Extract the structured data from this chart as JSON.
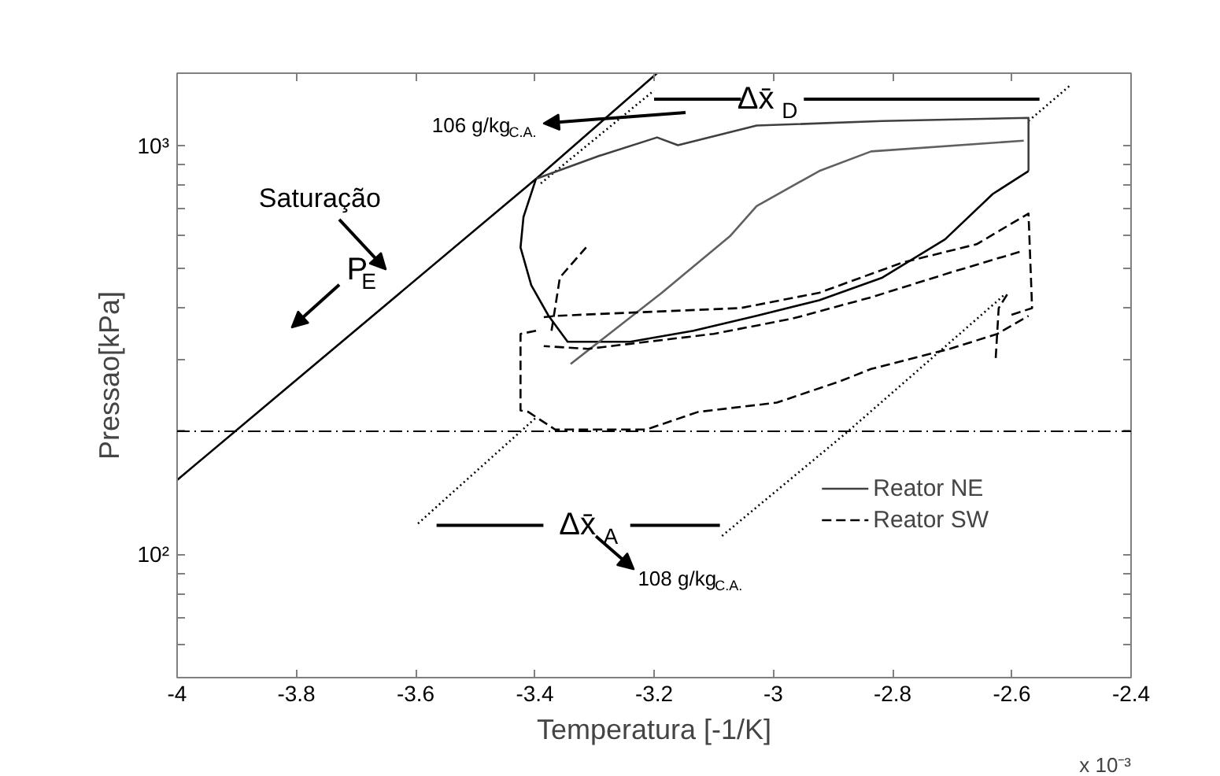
{
  "chart_data": {
    "type": "line",
    "xlabel": "Temperatura [-1/K]",
    "ylabel": "Pressao[kPa]",
    "xlim": [
      -4,
      -2.4
    ],
    "ylim": [
      50,
      1500
    ],
    "log": "y",
    "grid": false,
    "legend": "bottom right",
    "marker": "none",
    "xticks": [
      -4,
      -3.8,
      -3.6,
      -3.4,
      -3.2,
      -3,
      -2.8,
      -2.6,
      -2.4
    ],
    "yticks": [
      {
        "value": 60,
        "label": null
      },
      {
        "value": 70,
        "label": null
      },
      {
        "value": 80,
        "label": null
      },
      {
        "value": 90,
        "label": null
      },
      {
        "value": 100,
        "label": "10²"
      },
      {
        "value": 200,
        "label": null
      },
      {
        "value": 300,
        "label": null
      },
      {
        "value": 400,
        "label": null
      },
      {
        "value": 500,
        "label": null
      },
      {
        "value": 600,
        "label": null
      },
      {
        "value": 700,
        "label": null
      },
      {
        "value": 800,
        "label": null
      },
      {
        "value": 900,
        "label": null
      },
      {
        "value": 1000,
        "label": "10³"
      }
    ],
    "ref_lines": [
      {
        "axis": "y",
        "value": 200,
        "color": "#000000",
        "line_style": "dashdot"
      }
    ],
    "series": [
      {
        "color": "#000000",
        "line_style": "solid",
        "x": [
          -4,
          -3.398,
          -3.195
        ],
        "values": [
          152,
          828,
          1500
        ]
      },
      {
        "color": "#000000",
        "line_style": "dotted",
        "x": [
          -3.596,
          -3.398
        ],
        "values": [
          119,
          216
        ]
      },
      {
        "color": "#000000",
        "line_style": "dotted",
        "x": [
          -3.39,
          -3.2
        ],
        "values": [
          807,
          1361
        ]
      },
      {
        "color": "#000000",
        "line_style": "dotted",
        "x": [
          -3.086,
          -2.878,
          -2.614
        ],
        "values": [
          111,
          198,
          429
        ]
      },
      {
        "color": "#000000",
        "line_style": "dotted",
        "x": [
          -2.572,
          -2.5
        ],
        "values": [
          1146,
          1409
        ]
      },
      {
        "name": "Reator NE",
        "color": "#404040",
        "line_style": "solid",
        "x": [
          -3.398,
          -3.292,
          -3.195,
          -3.16,
          -3.028,
          -2.817,
          -2.572,
          -2.572
        ],
        "values": [
          828,
          942,
          1045,
          1000,
          1117,
          1146,
          1167,
          865
        ]
      },
      {
        "color": "#000000",
        "line_style": "solid",
        "x": [
          -2.572,
          -2.632,
          -2.712,
          -2.817,
          -2.923,
          -3.028,
          -3.134,
          -3.24,
          -3.345,
          -3.377,
          -3.406,
          -3.424,
          -3.419,
          -3.398
        ],
        "values": [
          865,
          760,
          589,
          475,
          418,
          383,
          352,
          331,
          331,
          383,
          455,
          563,
          668,
          828
        ]
      },
      {
        "color": "#606060",
        "line_style": "solid",
        "x": [
          -3.34,
          -3.187,
          -3.073,
          -3.028,
          -2.923,
          -2.836,
          -2.58
        ],
        "values": [
          292,
          436,
          599,
          710,
          865,
          966,
          1026
        ]
      },
      {
        "name": "Reator SW",
        "color": "#000000",
        "line_style": "dashed",
        "x": [
          -3.385,
          -3.364,
          -3.055,
          -2.923,
          -2.783,
          -2.659,
          -2.572,
          -2.566,
          -2.606
        ],
        "values": [
          380,
          383,
          400,
          436,
          517,
          573,
          681,
          400,
          383
        ]
      },
      {
        "color": "#000000",
        "line_style": "dashed",
        "x": [
          -2.587,
          -2.704,
          -2.836,
          -2.968,
          -3.1,
          -3.311,
          -3.385
        ],
        "values": [
          549,
          488,
          425,
          377,
          346,
          318,
          323
        ]
      },
      {
        "color": "#000000",
        "line_style": "dashed",
        "x": [
          -3.398,
          -3.424,
          -3.424,
          -3.411,
          -3.366,
          -3.213,
          -3.126,
          -2.994,
          -2.888,
          -2.836,
          -2.704,
          -2.624,
          -2.572
        ],
        "values": [
          352,
          346,
          225,
          223,
          202,
          202,
          223,
          235,
          265,
          284,
          318,
          346,
          383
        ]
      },
      {
        "color": "#000000",
        "line_style": "dashed",
        "x": [
          -3.372,
          -3.358,
          -3.314
        ],
        "values": [
          352,
          475,
          563
        ]
      },
      {
        "color": "#000000",
        "line_style": "dashed",
        "x": [
          -2.627,
          -2.622,
          -2.606
        ],
        "values": [
          302,
          400,
          436
        ]
      }
    ],
    "annotations": [
      "Saturação",
      "P$_{E}$",
      "106 g/kg$_{C.A.}$",
      "108 g/kg$_{C.A.}$",
      "Δx̄$_{D}$",
      "Δx̄$_{A}$",
      "x 10⁻³"
    ]
  }
}
